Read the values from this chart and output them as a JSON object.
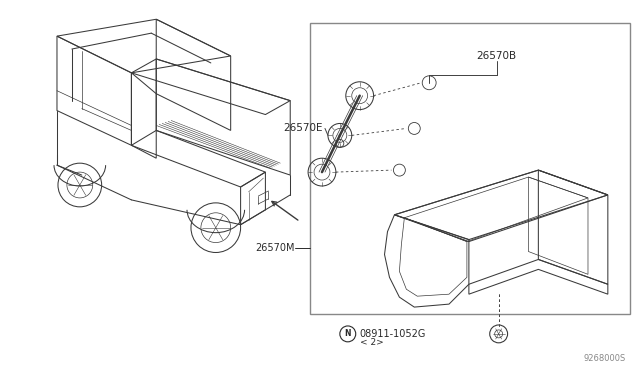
{
  "bg_color": "#ffffff",
  "line_color": "#404040",
  "text_color": "#2a2a2a",
  "box_color": "#aaaaaa",
  "ref_code": "9268000S",
  "label_26570M": "26570M",
  "label_26570E": "26570E",
  "label_26570B": "26570B",
  "label_nut": "08911-1052G",
  "label_qty": "< 2>",
  "label_N": "N"
}
